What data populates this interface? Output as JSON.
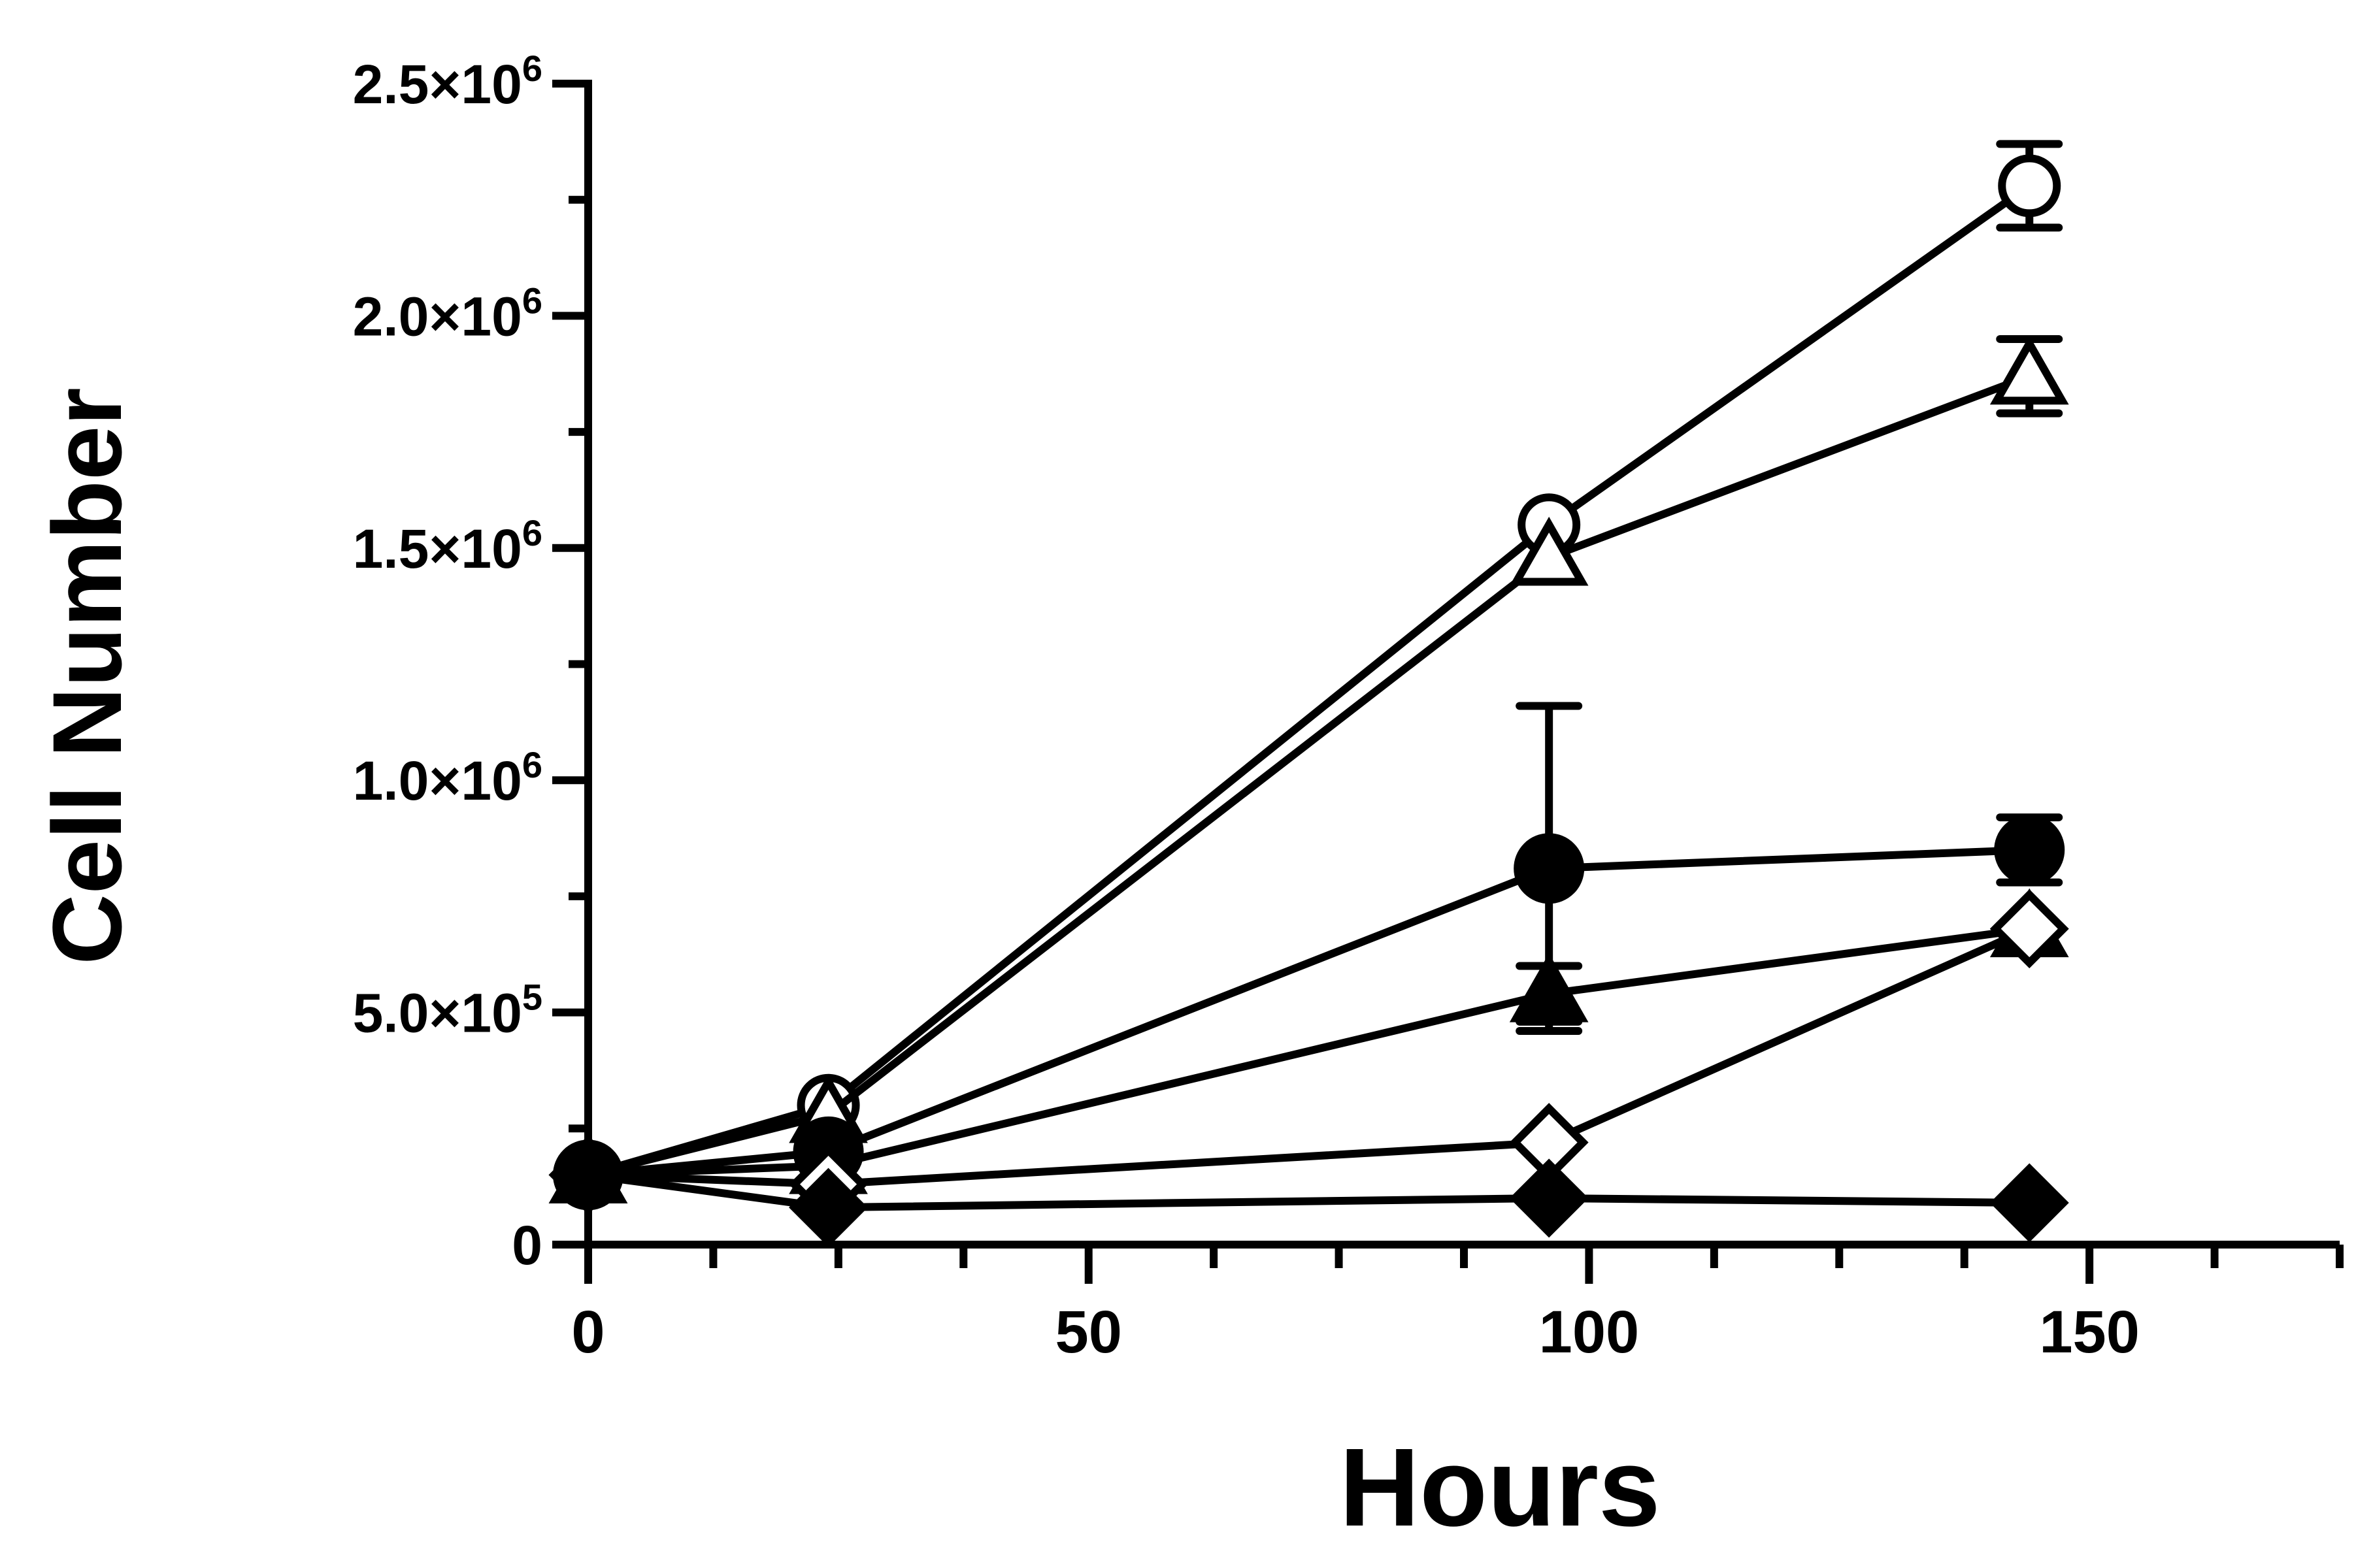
{
  "chart_data": {
    "type": "line",
    "xlabel": "Hours",
    "ylabel": "Cell Number",
    "xlim": [
      0,
      175
    ],
    "ylim": [
      0,
      2500000
    ],
    "x_ticks": [
      {
        "value": 0,
        "label": "0"
      },
      {
        "value": 50,
        "label": "50"
      },
      {
        "value": 100,
        "label": "100"
      },
      {
        "value": 150,
        "label": "150"
      }
    ],
    "y_ticks": [
      {
        "value": 0,
        "mant": "0",
        "exp": ""
      },
      {
        "value": 500000,
        "mant": "5.0×10",
        "exp": "5"
      },
      {
        "value": 1000000,
        "mant": "1.0×10",
        "exp": "6"
      },
      {
        "value": 1500000,
        "mant": "1.5×10",
        "exp": "6"
      },
      {
        "value": 2000000,
        "mant": "2.0×10",
        "exp": "6"
      },
      {
        "value": 2500000,
        "mant": "2.5×10",
        "exp": "6"
      }
    ],
    "grid": false,
    "legend": "none",
    "color": "#000000",
    "series": [
      {
        "marker": "open-circle",
        "x": [
          0,
          24,
          96,
          144
        ],
        "y": [
          150000,
          300000,
          1550000,
          2280000
        ],
        "err": [
          null,
          null,
          null,
          90000
        ]
      },
      {
        "marker": "open-triangle",
        "x": [
          0,
          24,
          96,
          144
        ],
        "y": [
          150000,
          280000,
          1480000,
          1870000
        ],
        "err": [
          null,
          null,
          null,
          80000
        ]
      },
      {
        "marker": "filled-circle",
        "x": [
          0,
          24,
          96,
          144
        ],
        "y": [
          150000,
          200000,
          810000,
          850000
        ],
        "err": [
          null,
          null,
          350000,
          70000
        ]
      },
      {
        "marker": "filled-triangle",
        "x": [
          0,
          24,
          96,
          144
        ],
        "y": [
          150000,
          170000,
          540000,
          680000
        ],
        "err": [
          null,
          null,
          60000,
          null
        ]
      },
      {
        "marker": "open-diamond",
        "x": [
          0,
          24,
          96,
          144
        ],
        "y": [
          150000,
          130000,
          220000,
          680000
        ],
        "err": [
          null,
          null,
          null,
          null
        ]
      },
      {
        "marker": "filled-diamond",
        "x": [
          0,
          24,
          96,
          144
        ],
        "y": [
          150000,
          80000,
          100000,
          90000
        ],
        "err": [
          null,
          null,
          null,
          null
        ]
      }
    ]
  }
}
